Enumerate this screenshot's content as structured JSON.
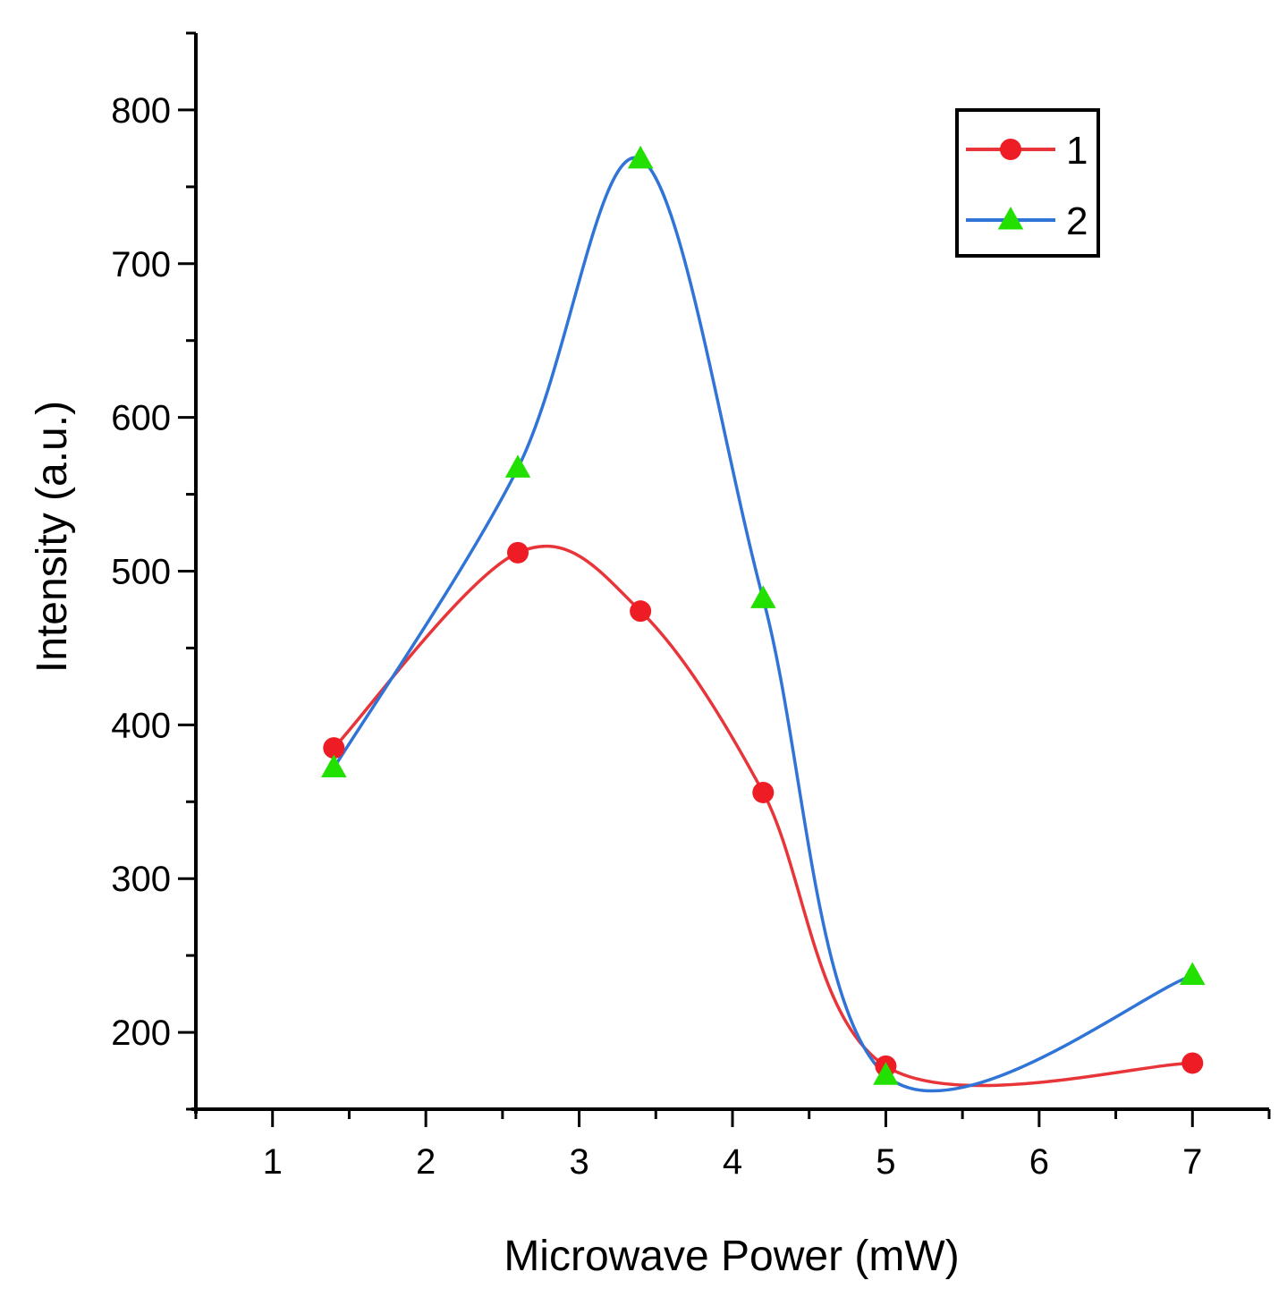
{
  "chart_data": {
    "type": "line",
    "title": "",
    "xlabel": "Microwave Power (mW)",
    "ylabel": "Intensity (a.u.)",
    "xlim": [
      0.5,
      7.5
    ],
    "ylim": [
      150,
      850
    ],
    "x_ticks": [
      1,
      2,
      3,
      4,
      5,
      6,
      7
    ],
    "x_tick_labels": [
      "1",
      "2",
      "3",
      "4",
      "5",
      "6",
      "7"
    ],
    "y_ticks": [
      200,
      300,
      400,
      500,
      600,
      700,
      800
    ],
    "y_tick_labels": [
      "200",
      "300",
      "400",
      "500",
      "600",
      "700",
      "800"
    ],
    "grid": false,
    "legend_position": "top-right",
    "series": [
      {
        "name": "1",
        "color": "#e8353a",
        "marker": "circle",
        "marker_color": "#ee1c24",
        "x": [
          1.4,
          2.6,
          3.4,
          4.2,
          5.0,
          7.0
        ],
        "values": [
          385,
          512,
          474,
          356,
          178,
          180
        ]
      },
      {
        "name": "2",
        "color": "#2f74d6",
        "marker": "triangle",
        "marker_color": "#22e000",
        "x": [
          1.4,
          2.6,
          3.4,
          4.2,
          5.0,
          7.0
        ],
        "values": [
          372,
          567,
          768,
          482,
          172,
          237
        ]
      }
    ]
  }
}
